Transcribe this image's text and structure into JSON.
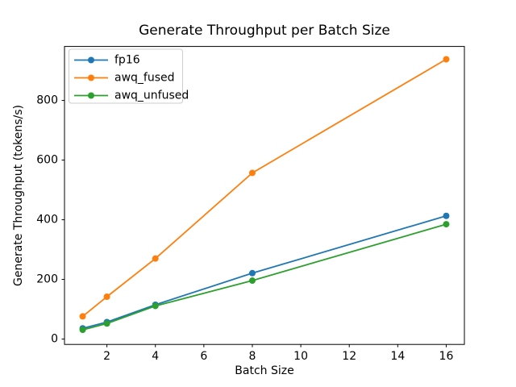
{
  "chart_data": {
    "type": "line",
    "title": "Generate Throughput per Batch Size",
    "xlabel": "Batch Size",
    "ylabel": "Generate Throughput (tokens/s)",
    "x": [
      1,
      2,
      4,
      8,
      16
    ],
    "series": [
      {
        "name": "fp16",
        "color": "#1f77b4",
        "values": [
          36,
          57,
          115,
          221,
          413
        ]
      },
      {
        "name": "awq_fused",
        "color": "#ff7f0e",
        "values": [
          76,
          142,
          270,
          557,
          938
        ]
      },
      {
        "name": "awq_unfused",
        "color": "#2ca02c",
        "values": [
          31,
          52,
          111,
          196,
          385
        ]
      }
    ],
    "xticks": [
      2,
      4,
      6,
      8,
      10,
      12,
      14,
      16
    ],
    "yticks": [
      0,
      200,
      400,
      600,
      800
    ],
    "xlim": [
      0.25,
      16.75
    ],
    "ylim": [
      -18,
      981
    ],
    "grid": false,
    "marker": "o",
    "legend": {
      "position": "upper left",
      "entries": [
        "fp16",
        "awq_fused",
        "awq_unfused"
      ]
    },
    "colors": {
      "background": "#ffffff",
      "axes": "#000000",
      "legend_border": "#cccccc"
    }
  }
}
